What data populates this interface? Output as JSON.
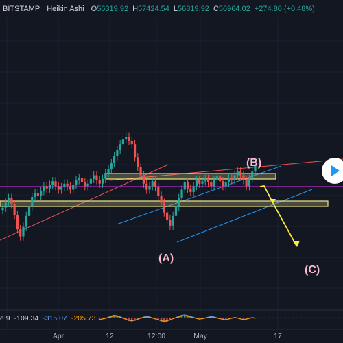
{
  "header": {
    "symbol": "BITSTAMP",
    "chart_style": "Heikin Ashi",
    "open_label": "O",
    "open": "56319.92",
    "high_label": "H",
    "high": "57424.54",
    "low_label": "L",
    "low": "56319.92",
    "close_label": "C",
    "close": "56964.02",
    "change": "+274.80 (+0.48%)"
  },
  "indicator": {
    "name_fragment": "e 9",
    "value_1": "-109.34",
    "value_2": "-315.07",
    "value_3": "-205.73"
  },
  "annotations": {
    "wave_b": "(B)",
    "wave_a": "(A)",
    "wave_c": "(C)"
  },
  "buttons": {
    "play_icon": "play-icon"
  },
  "colors": {
    "background": "#131722",
    "up_candle": "#26a69a",
    "down_candle": "#ef5350",
    "channel": "#2196f3",
    "highlight_zone": "#f0e68c",
    "purple_level": "#9c27b0",
    "projection_arrow": "#ffeb3b",
    "annotation_text": "#f8bbd0"
  },
  "chart_data": {
    "type": "candlestick",
    "chart_style": "Heikin Ashi",
    "symbol": "BITSTAMP",
    "x_ticks": [
      "Apr",
      "12",
      "12:00",
      "May",
      "17"
    ],
    "grid": true,
    "series": [
      {
        "values": [
          53400,
          53800,
          54200,
          53700,
          52800,
          51600,
          51000,
          51800,
          52700,
          53500,
          54300,
          54600,
          54400,
          54800,
          55200,
          55000,
          55300,
          55600,
          55200,
          54900,
          55100,
          55400,
          55200,
          54900,
          55300,
          55700,
          55900,
          55500,
          55200,
          55400,
          55800,
          56100,
          55700,
          55400,
          55800,
          56300,
          56600,
          57100,
          57700,
          58200,
          58700,
          59100,
          59300,
          59000,
          58700,
          57600,
          56800,
          56100,
          55400,
          54900,
          55200,
          55600,
          55100,
          54400,
          53800,
          53000,
          52400,
          51900,
          52700,
          53500,
          54200,
          54900,
          55500,
          55000,
          54700,
          55200,
          55700,
          55400,
          55600,
          55800,
          55500,
          55200,
          55700,
          56000,
          55600,
          55200,
          55500,
          55900,
          55700,
          56100,
          56400,
          56100,
          55700,
          55200,
          55800,
          56400,
          56900
        ]
      },
      {
        "name": "oscillator",
        "values": [
          -200,
          -120,
          -60,
          40,
          150,
          230,
          180,
          90,
          -30,
          -150,
          -260,
          -310,
          -250,
          -140,
          -40,
          60,
          120,
          80,
          -20,
          -110,
          -200,
          -300,
          -380,
          -320,
          -210,
          -90,
          20,
          130,
          220,
          260,
          200,
          110,
          30,
          -60,
          -130,
          -90,
          -20,
          50,
          110,
          70,
          -10,
          -90,
          -160,
          -200,
          -120,
          -40,
          30,
          -20,
          -110,
          -180,
          -130,
          -50,
          20,
          -40
        ]
      }
    ]
  }
}
